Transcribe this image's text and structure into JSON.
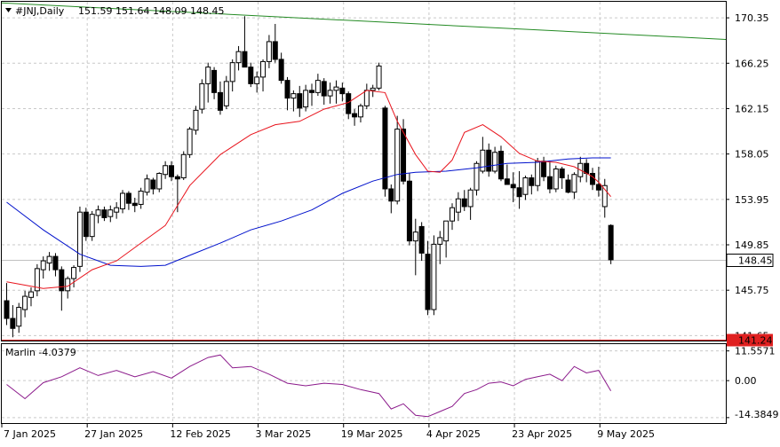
{
  "header": {
    "symbol": "#JNJ,Daily",
    "ohlc": "151.59 151.64 148.09 148.45"
  },
  "indicator": {
    "label": "Marlin -4.0379",
    "axis": [
      "11.5571",
      "0.00",
      "-14.3849"
    ],
    "ylim": [
      -16.5,
      14.2
    ]
  },
  "price_axis": {
    "ticks": [
      "170.35",
      "166.25",
      "162.15",
      "158.05",
      "153.95",
      "149.85",
      "145.75",
      "141.65"
    ],
    "current_label": "148.45",
    "support_label": "141.24",
    "ylim": [
      141.2,
      171.8
    ]
  },
  "date_axis": [
    "7 Jan 2025",
    "27 Jan 2025",
    "12 Feb 2025",
    "3 Mar 2025",
    "19 Mar 2025",
    "4 Apr 2025",
    "23 Apr 2025",
    "9 May 2025"
  ],
  "colors": {
    "bull": "#ffffff",
    "bear": "#000000",
    "ma_red": "#e8131c",
    "ma_blue": "#0011cc",
    "trend_green": "#238a23",
    "support": "#d41a1a",
    "marlin": "#8b1a8b",
    "grid": "#c9c9c9",
    "label_bg": "#e02020"
  },
  "chart_data": {
    "type": "candlestick",
    "title": "#JNJ,Daily",
    "candles": [
      [
        144.8,
        146.4,
        142.6,
        143.2
      ],
      [
        143.2,
        144.4,
        141.5,
        142.3
      ],
      [
        142.5,
        144.6,
        141.9,
        144.2
      ],
      [
        144.0,
        145.7,
        143.3,
        145.2
      ],
      [
        145.1,
        146.0,
        144.3,
        145.6
      ],
      [
        145.7,
        148.1,
        145.2,
        147.7
      ],
      [
        147.6,
        148.8,
        146.8,
        148.4
      ],
      [
        148.2,
        149.2,
        147.5,
        148.8
      ],
      [
        148.8,
        149.1,
        147.0,
        147.6
      ],
      [
        147.6,
        147.9,
        143.9,
        145.7
      ],
      [
        145.7,
        147.0,
        145.0,
        146.8
      ],
      [
        146.8,
        148.0,
        146.0,
        147.8
      ],
      [
        147.9,
        153.3,
        147.4,
        152.8
      ],
      [
        152.8,
        153.2,
        150.2,
        150.6
      ],
      [
        150.6,
        152.9,
        150.2,
        152.6
      ],
      [
        152.5,
        153.4,
        151.8,
        153.0
      ],
      [
        153.0,
        153.3,
        152.0,
        152.3
      ],
      [
        152.4,
        153.4,
        151.9,
        153.0
      ],
      [
        152.8,
        153.7,
        152.2,
        153.2
      ],
      [
        153.1,
        154.8,
        152.7,
        154.5
      ],
      [
        154.5,
        154.7,
        153.0,
        153.6
      ],
      [
        153.6,
        154.1,
        152.8,
        153.4
      ],
      [
        153.5,
        155.0,
        153.1,
        154.7
      ],
      [
        154.6,
        156.2,
        154.3,
        155.8
      ],
      [
        155.7,
        155.9,
        154.4,
        154.9
      ],
      [
        154.9,
        156.4,
        154.6,
        156.3
      ],
      [
        156.2,
        157.4,
        155.8,
        157.0
      ],
      [
        157.0,
        157.4,
        155.6,
        156.0
      ],
      [
        156.0,
        156.2,
        152.8,
        155.8
      ],
      [
        155.9,
        158.3,
        155.7,
        158.0
      ],
      [
        158.0,
        160.5,
        157.7,
        160.3
      ],
      [
        160.2,
        162.4,
        159.8,
        162.0
      ],
      [
        162.1,
        164.8,
        161.7,
        164.4
      ],
      [
        164.4,
        166.3,
        162.7,
        165.9
      ],
      [
        165.6,
        165.9,
        163.0,
        163.6
      ],
      [
        163.6,
        164.6,
        161.6,
        162.0
      ],
      [
        162.4,
        165.1,
        162.1,
        164.6
      ],
      [
        164.6,
        166.6,
        163.7,
        166.3
      ],
      [
        166.3,
        167.8,
        165.6,
        167.3
      ],
      [
        167.3,
        170.5,
        166.0,
        165.9
      ],
      [
        165.9,
        166.3,
        164.1,
        164.4
      ],
      [
        164.4,
        165.5,
        163.6,
        165.0
      ],
      [
        165.0,
        166.6,
        163.7,
        166.4
      ],
      [
        166.4,
        168.8,
        165.8,
        168.2
      ],
      [
        168.2,
        169.8,
        166.3,
        166.6
      ],
      [
        166.6,
        167.2,
        164.4,
        164.7
      ],
      [
        164.7,
        165.0,
        162.0,
        163.1
      ],
      [
        163.1,
        163.8,
        161.9,
        163.5
      ],
      [
        163.5,
        164.2,
        161.4,
        162.2
      ],
      [
        162.3,
        164.3,
        161.9,
        163.8
      ],
      [
        163.8,
        164.4,
        162.4,
        163.6
      ],
      [
        163.6,
        165.3,
        163.3,
        164.7
      ],
      [
        164.6,
        164.9,
        162.5,
        163.3
      ],
      [
        163.3,
        164.5,
        162.6,
        163.8
      ],
      [
        163.8,
        164.7,
        162.6,
        164.1
      ],
      [
        164.0,
        164.5,
        162.8,
        163.5
      ],
      [
        163.5,
        163.7,
        161.2,
        161.7
      ],
      [
        161.7,
        162.1,
        160.6,
        161.4
      ],
      [
        161.4,
        162.6,
        160.9,
        162.4
      ],
      [
        162.4,
        164.4,
        162.1,
        163.8
      ],
      [
        163.8,
        164.3,
        163.2,
        164.0
      ],
      [
        164.0,
        166.3,
        163.8,
        166.0
      ],
      [
        162.2,
        162.4,
        154.2,
        154.9
      ],
      [
        154.9,
        155.3,
        152.7,
        153.8
      ],
      [
        153.8,
        161.5,
        153.5,
        160.3
      ],
      [
        160.3,
        161.2,
        155.3,
        155.6
      ],
      [
        155.6,
        156.3,
        149.8,
        150.2
      ],
      [
        150.2,
        152.2,
        147.1,
        151.0
      ],
      [
        151.5,
        151.9,
        148.4,
        149.1
      ],
      [
        149.0,
        150.2,
        143.5,
        144.0
      ],
      [
        144.0,
        150.7,
        143.5,
        149.9
      ],
      [
        149.9,
        151.1,
        148.1,
        150.5
      ],
      [
        150.2,
        152.0,
        148.7,
        152.0
      ],
      [
        152.0,
        153.6,
        151.2,
        153.2
      ],
      [
        152.8,
        154.6,
        152.0,
        154.0
      ],
      [
        154.0,
        154.8,
        152.9,
        153.3
      ],
      [
        153.3,
        155.0,
        152.1,
        154.8
      ],
      [
        154.8,
        157.4,
        154.3,
        157.2
      ],
      [
        156.5,
        159.6,
        156.3,
        158.4
      ],
      [
        158.4,
        159.0,
        156.0,
        156.5
      ],
      [
        156.5,
        158.7,
        156.3,
        158.2
      ],
      [
        158.3,
        158.8,
        155.6,
        155.8
      ],
      [
        155.8,
        157.1,
        155.3,
        155.3
      ],
      [
        155.3,
        156.4,
        153.7,
        155.0
      ],
      [
        155.0,
        156.5,
        153.1,
        154.2
      ],
      [
        154.4,
        156.1,
        153.9,
        155.9
      ],
      [
        155.9,
        156.2,
        154.4,
        155.2
      ],
      [
        155.2,
        157.7,
        154.7,
        157.4
      ],
      [
        157.4,
        157.8,
        155.6,
        156.0
      ],
      [
        156.0,
        157.3,
        154.5,
        154.9
      ],
      [
        154.9,
        157.0,
        154.6,
        156.7
      ],
      [
        156.7,
        156.9,
        154.9,
        155.9
      ],
      [
        155.7,
        156.2,
        154.5,
        154.6
      ],
      [
        154.6,
        156.4,
        154.0,
        156.2
      ],
      [
        156.0,
        157.8,
        155.5,
        157.2
      ],
      [
        157.2,
        157.6,
        155.5,
        156.3
      ],
      [
        156.3,
        156.8,
        154.8,
        155.3
      ],
      [
        155.3,
        156.9,
        154.2,
        154.8
      ],
      [
        153.3,
        155.8,
        152.3,
        155.2
      ],
      [
        151.6,
        151.7,
        148.1,
        148.5
      ]
    ],
    "ma_red": [
      [
        0,
        146.5
      ],
      [
        6,
        145.9
      ],
      [
        10,
        146.1
      ],
      [
        14,
        147.6
      ],
      [
        18,
        148.4
      ],
      [
        22,
        150.0
      ],
      [
        26,
        151.6
      ],
      [
        30,
        155.2
      ],
      [
        35,
        158.0
      ],
      [
        40,
        159.8
      ],
      [
        44,
        160.7
      ],
      [
        48,
        161.0
      ],
      [
        52,
        162.1
      ],
      [
        56,
        162.7
      ],
      [
        59,
        163.8
      ],
      [
        62,
        163.6
      ],
      [
        64,
        161.0
      ],
      [
        67,
        158.0
      ],
      [
        69,
        156.5
      ],
      [
        71,
        156.4
      ],
      [
        73,
        157.5
      ],
      [
        75,
        160.0
      ],
      [
        78,
        160.7
      ],
      [
        81,
        159.6
      ],
      [
        84,
        158.1
      ],
      [
        87,
        157.4
      ],
      [
        90,
        157.3
      ],
      [
        93,
        156.9
      ],
      [
        96,
        156.0
      ],
      [
        97,
        155.5
      ],
      [
        99,
        154.2
      ]
    ],
    "ma_blue": [
      [
        0,
        153.7
      ],
      [
        6,
        151.2
      ],
      [
        12,
        149.0
      ],
      [
        17,
        148.0
      ],
      [
        22,
        147.9
      ],
      [
        26,
        148.0
      ],
      [
        30,
        148.9
      ],
      [
        35,
        150.0
      ],
      [
        40,
        151.2
      ],
      [
        45,
        152.0
      ],
      [
        50,
        153.0
      ],
      [
        55,
        154.5
      ],
      [
        60,
        155.6
      ],
      [
        64,
        156.2
      ],
      [
        67,
        156.4
      ],
      [
        72,
        156.5
      ],
      [
        77,
        156.8
      ],
      [
        82,
        157.2
      ],
      [
        87,
        157.3
      ],
      [
        92,
        157.6
      ],
      [
        96,
        157.7
      ],
      [
        99,
        157.7
      ]
    ],
    "marlin": [
      [
        0,
        -1.5
      ],
      [
        3,
        -7.0
      ],
      [
        6,
        -0.8
      ],
      [
        9,
        1.5
      ],
      [
        12,
        5.0
      ],
      [
        15,
        2.0
      ],
      [
        18,
        4.0
      ],
      [
        21,
        1.5
      ],
      [
        24,
        3.5
      ],
      [
        27,
        1.0
      ],
      [
        30,
        5.5
      ],
      [
        33,
        9.0
      ],
      [
        35,
        10.0
      ],
      [
        37,
        5.0
      ],
      [
        40,
        5.5
      ],
      [
        43,
        2.5
      ],
      [
        46,
        -1.0
      ],
      [
        49,
        -2.0
      ],
      [
        52,
        -1.0
      ],
      [
        55,
        -1.5
      ],
      [
        58,
        -3.5
      ],
      [
        61,
        -5.0
      ],
      [
        63,
        -11.0
      ],
      [
        65,
        -9.0
      ],
      [
        67,
        -13.5
      ],
      [
        69,
        -14.0
      ],
      [
        71,
        -12.0
      ],
      [
        73,
        -10.0
      ],
      [
        75,
        -5.0
      ],
      [
        77,
        -3.5
      ],
      [
        79,
        -1.0
      ],
      [
        81,
        -0.5
      ],
      [
        83,
        -2.0
      ],
      [
        85,
        0.5
      ],
      [
        87,
        1.5
      ],
      [
        89,
        2.5
      ],
      [
        91,
        0.0
      ],
      [
        93,
        5.5
      ],
      [
        95,
        3.0
      ],
      [
        97,
        4.0
      ],
      [
        99,
        -4.0
      ]
    ]
  }
}
